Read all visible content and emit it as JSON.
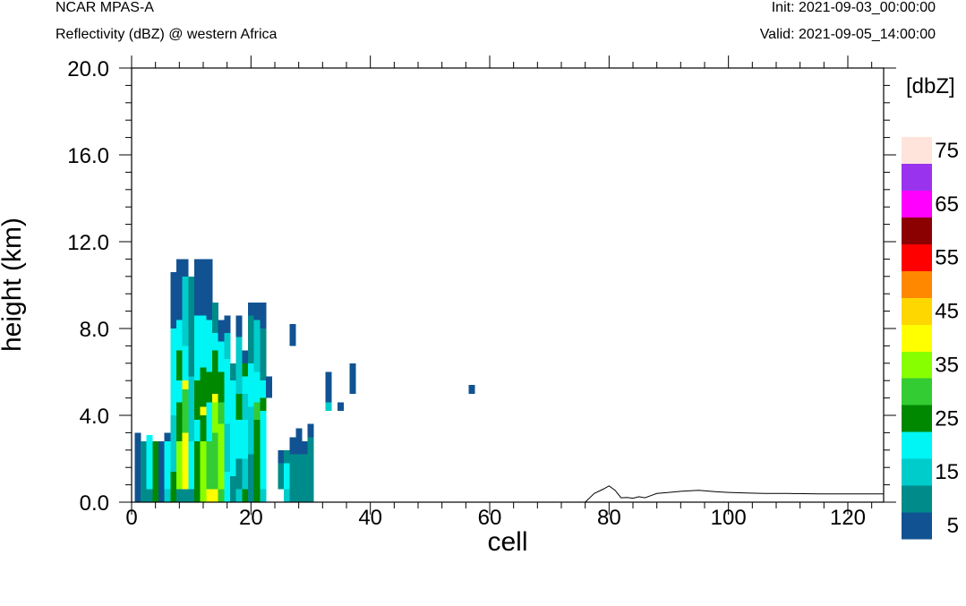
{
  "header": {
    "model": "NCAR MPAS-A",
    "subtitle": "Reflectivity (dBZ) @ western Africa",
    "init": "Init: 2021-09-03_00:00:00",
    "valid": "Valid: 2021-09-05_14:00:00"
  },
  "chart_data": {
    "type": "heatmap",
    "xlabel": "cell",
    "ylabel": "height (km)",
    "xlim": [
      0,
      126
    ],
    "ylim": [
      0,
      20
    ],
    "x_ticks": [
      "0",
      "20",
      "40",
      "60",
      "80",
      "100",
      "120"
    ],
    "y_ticks": [
      "0.0",
      "4.0",
      "8.0",
      "12.0",
      "16.0",
      "20.0"
    ],
    "colorbar": {
      "title": "[dbZ]",
      "colors": [
        "#115392",
        "#008b8b",
        "#00cccc",
        "#00f5f5",
        "#008800",
        "#33cc33",
        "#88ff00",
        "#ffff00",
        "#ffd700",
        "#ff8800",
        "#ff0000",
        "#8b0000",
        "#ff00ff",
        "#9933ee",
        "#ffe4dc"
      ],
      "labels": [
        "5",
        "15",
        "25",
        "35",
        "45",
        "55",
        "65",
        "75"
      ]
    },
    "cells": [
      [
        1,
        0,
        2.8,
        0
      ],
      [
        1,
        2.8,
        0.4,
        0
      ],
      [
        2,
        0,
        2.8,
        1
      ],
      [
        3,
        0,
        0.6,
        1
      ],
      [
        3,
        0.6,
        2.2,
        3
      ],
      [
        3,
        2.8,
        0.3,
        3
      ],
      [
        4,
        0,
        2.8,
        4
      ],
      [
        5,
        0,
        2.8,
        0
      ],
      [
        6,
        0,
        0.6,
        2
      ],
      [
        6,
        0.6,
        2.2,
        3
      ],
      [
        6,
        2.8,
        0.4,
        0
      ],
      [
        7,
        0,
        1.4,
        4
      ],
      [
        7,
        1.4,
        2.6,
        2
      ],
      [
        7,
        4,
        2.5,
        3
      ],
      [
        7,
        6.5,
        1.5,
        3
      ],
      [
        7,
        8,
        2.6,
        0
      ],
      [
        8,
        0,
        0.6,
        1
      ],
      [
        8,
        0.6,
        2.2,
        6
      ],
      [
        8,
        2.8,
        1.8,
        4
      ],
      [
        8,
        4.6,
        1,
        3
      ],
      [
        8,
        5.6,
        1.4,
        4
      ],
      [
        8,
        7,
        1.4,
        3
      ],
      [
        8,
        8.4,
        2.8,
        0
      ],
      [
        9,
        0,
        0.6,
        1
      ],
      [
        9,
        0.6,
        2.6,
        7
      ],
      [
        9,
        3.2,
        2,
        5
      ],
      [
        9,
        5.2,
        0.4,
        7
      ],
      [
        9,
        5.6,
        1.6,
        3
      ],
      [
        9,
        7.2,
        3.2,
        2
      ],
      [
        9,
        10.4,
        0.8,
        0
      ],
      [
        10,
        0,
        0.6,
        1
      ],
      [
        10,
        0.6,
        2.2,
        3
      ],
      [
        10,
        2.8,
        3,
        2
      ],
      [
        10,
        5.8,
        3.2,
        1
      ],
      [
        10,
        9,
        1.4,
        1
      ],
      [
        11,
        0,
        2.8,
        4
      ],
      [
        11,
        2.8,
        1,
        3
      ],
      [
        11,
        3.8,
        1.8,
        4
      ],
      [
        11,
        5.6,
        3,
        3
      ],
      [
        11,
        8.6,
        2.6,
        0
      ],
      [
        12,
        0,
        2.8,
        6
      ],
      [
        12,
        2.8,
        1.2,
        4
      ],
      [
        12,
        4,
        0.4,
        7
      ],
      [
        12,
        4.4,
        1.8,
        4
      ],
      [
        12,
        6.2,
        2.4,
        3
      ],
      [
        12,
        8.6,
        2.6,
        0
      ],
      [
        13,
        0,
        0.6,
        7
      ],
      [
        13,
        0.6,
        2.2,
        5
      ],
      [
        13,
        2.8,
        1.8,
        3
      ],
      [
        13,
        4.6,
        1.4,
        4
      ],
      [
        13,
        6,
        2.4,
        3
      ],
      [
        13,
        8.4,
        2.8,
        0
      ],
      [
        14,
        0,
        0.6,
        7
      ],
      [
        14,
        0.6,
        2.6,
        5
      ],
      [
        14,
        3.2,
        1.4,
        6
      ],
      [
        14,
        4.6,
        0.4,
        7
      ],
      [
        14,
        5,
        2,
        4
      ],
      [
        14,
        7,
        0.8,
        3
      ],
      [
        14,
        7.8,
        1.4,
        1
      ],
      [
        15,
        0,
        0.6,
        5
      ],
      [
        15,
        0.6,
        3,
        6
      ],
      [
        15,
        3.6,
        1,
        5
      ],
      [
        15,
        4.6,
        1.4,
        4
      ],
      [
        15,
        6,
        1.4,
        3
      ],
      [
        15,
        7.4,
        1,
        0
      ],
      [
        16,
        0,
        1.4,
        3
      ],
      [
        16,
        1.4,
        2.2,
        2
      ],
      [
        16,
        3.6,
        3,
        3
      ],
      [
        16,
        6.6,
        1.2,
        2
      ],
      [
        16,
        7.8,
        0.8,
        0
      ],
      [
        17,
        0,
        1.2,
        1
      ],
      [
        17,
        1.2,
        2.4,
        3
      ],
      [
        17,
        3.6,
        2,
        3
      ],
      [
        17,
        5.6,
        0.8,
        1
      ],
      [
        18,
        0,
        0.6,
        2
      ],
      [
        18,
        0.6,
        1.4,
        1
      ],
      [
        18,
        2,
        1.8,
        3
      ],
      [
        18,
        3.8,
        1.2,
        4
      ],
      [
        18,
        5,
        2.6,
        2
      ],
      [
        18,
        7.6,
        1,
        0
      ],
      [
        19,
        0,
        0.6,
        4
      ],
      [
        19,
        0.6,
        1.4,
        2
      ],
      [
        19,
        2,
        1.8,
        3
      ],
      [
        19,
        3.8,
        1.2,
        2
      ],
      [
        19,
        5,
        0.8,
        3
      ],
      [
        19,
        5.8,
        0.6,
        4
      ],
      [
        19,
        6.4,
        0.6,
        0
      ],
      [
        20,
        0,
        2.2,
        1
      ],
      [
        20,
        2.2,
        2.2,
        2
      ],
      [
        20,
        4.4,
        2,
        3
      ],
      [
        20,
        6.4,
        2.2,
        1
      ],
      [
        20,
        8.6,
        0.6,
        0
      ],
      [
        21,
        0,
        3.8,
        4
      ],
      [
        21,
        3.8,
        0.8,
        5
      ],
      [
        21,
        4.6,
        1.4,
        3
      ],
      [
        21,
        6,
        2.4,
        2
      ],
      [
        21,
        8.4,
        0.8,
        0
      ],
      [
        22,
        0,
        0.6,
        2
      ],
      [
        22,
        0.6,
        3.6,
        3
      ],
      [
        22,
        4.2,
        0.6,
        4
      ],
      [
        22,
        4.8,
        0.8,
        3
      ],
      [
        22,
        5.6,
        2.4,
        1
      ],
      [
        22,
        8,
        1.2,
        0
      ],
      [
        23,
        4.8,
        1,
        0
      ],
      [
        25,
        0.6,
        1.2,
        1
      ],
      [
        25,
        1.8,
        0.6,
        0
      ],
      [
        26,
        0,
        0.6,
        2
      ],
      [
        26,
        0.6,
        1.2,
        3
      ],
      [
        26,
        1.8,
        0.6,
        1
      ],
      [
        27,
        0,
        2.2,
        1
      ],
      [
        27,
        2.2,
        0.8,
        0
      ],
      [
        27,
        7.2,
        1,
        0
      ],
      [
        28,
        0,
        2.2,
        1
      ],
      [
        28,
        2.2,
        1.2,
        0
      ],
      [
        29,
        0,
        2.2,
        1
      ],
      [
        29,
        2.2,
        0.6,
        0
      ],
      [
        30,
        0,
        3,
        1
      ],
      [
        30,
        3,
        0.6,
        0
      ],
      [
        33,
        4.2,
        0.4,
        2
      ],
      [
        33,
        4.6,
        1.4,
        0
      ],
      [
        35,
        4.2,
        0.4,
        0
      ],
      [
        37,
        5,
        1.4,
        0
      ],
      [
        57,
        5,
        0.4,
        0
      ]
    ],
    "terrain": [
      [
        0,
        0
      ],
      [
        76,
        0
      ],
      [
        77.5,
        0.4
      ],
      [
        79,
        0.6
      ],
      [
        80,
        0.75
      ],
      [
        81,
        0.55
      ],
      [
        82,
        0.2
      ],
      [
        83,
        0.22
      ],
      [
        84,
        0.18
      ],
      [
        85,
        0.25
      ],
      [
        86,
        0.2
      ],
      [
        87,
        0.3
      ],
      [
        88,
        0.4
      ],
      [
        90,
        0.45
      ],
      [
        92,
        0.5
      ],
      [
        95,
        0.55
      ],
      [
        98,
        0.48
      ],
      [
        100,
        0.45
      ],
      [
        103,
        0.42
      ],
      [
        106,
        0.4
      ],
      [
        110,
        0.4
      ],
      [
        115,
        0.38
      ],
      [
        120,
        0.38
      ],
      [
        126,
        0.38
      ]
    ]
  }
}
